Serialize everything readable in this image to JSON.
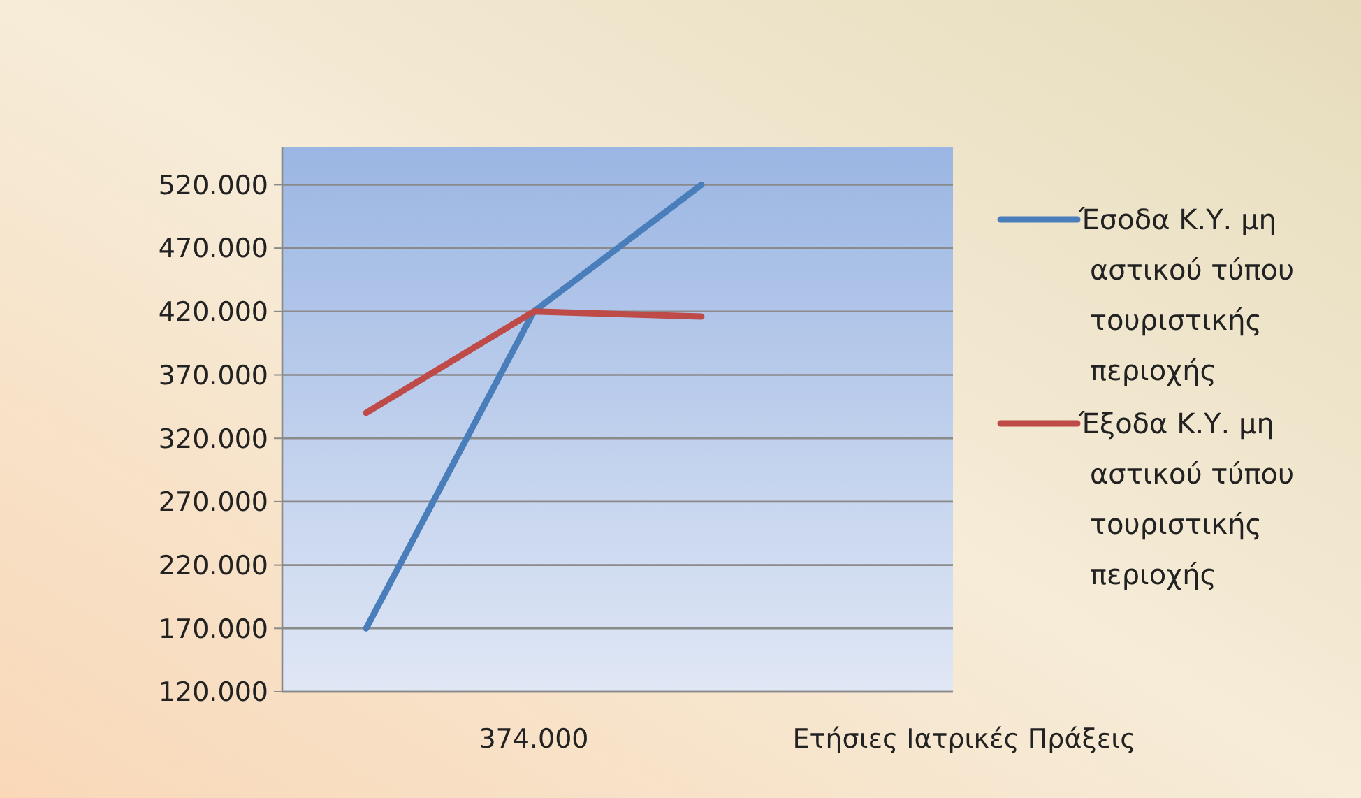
{
  "chart_data": {
    "type": "line",
    "xlabel": "Ετήσιες Ιατρικές Πράξεις",
    "categories": [
      null,
      "374.000",
      null,
      null
    ],
    "series": [
      {
        "name": "Έσοδα Κ.Υ. μη αστικού τύπου τουριστικής περιοχής",
        "color": "#4a7ebb",
        "values": [
          170000,
          420000,
          520000,
          null
        ]
      },
      {
        "name": "Έξοδα Κ.Υ. μη αστικού τύπου τουριστικής περιοχής",
        "color": "#be4b48",
        "values": [
          340000,
          420000,
          416000,
          null
        ]
      }
    ],
    "ylim": [
      120000,
      550000
    ],
    "yticks": [
      {
        "value": 120000,
        "label": "120.000"
      },
      {
        "value": 170000,
        "label": "170.000"
      },
      {
        "value": 220000,
        "label": "220.000"
      },
      {
        "value": 270000,
        "label": "270.000"
      },
      {
        "value": 320000,
        "label": "320.000"
      },
      {
        "value": 370000,
        "label": "370.000"
      },
      {
        "value": 420000,
        "label": "420.000"
      },
      {
        "value": 470000,
        "label": "470.000"
      },
      {
        "value": 520000,
        "label": "520.000"
      }
    ],
    "grid": "y",
    "legend": "right",
    "marker": "none",
    "line_style": "solid"
  }
}
